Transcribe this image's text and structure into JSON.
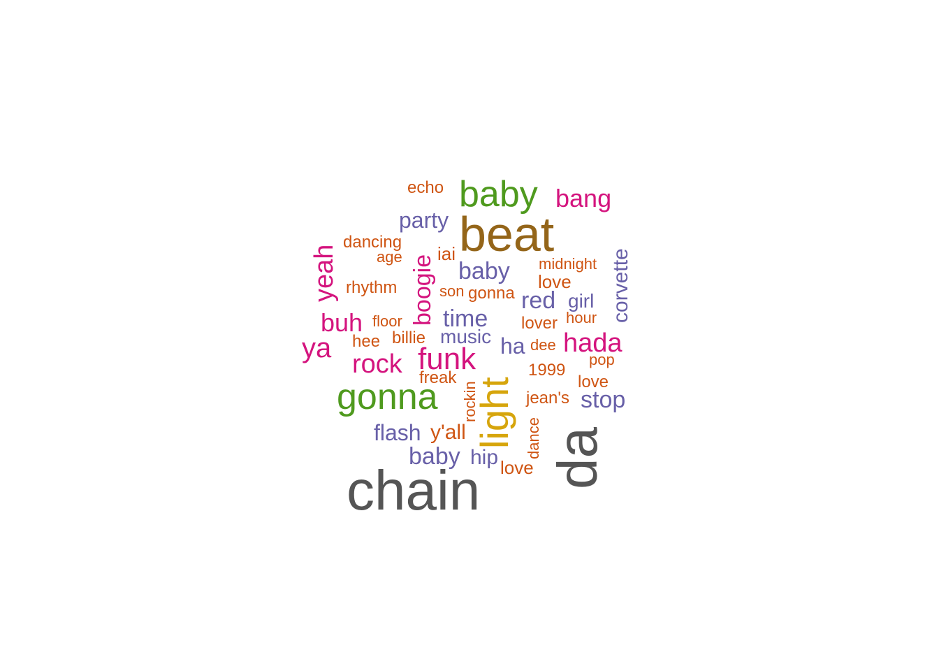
{
  "word_cloud": {
    "words": [
      {
        "text": "chain",
        "color": "#555555"
      },
      {
        "text": "da",
        "color": "#555555"
      },
      {
        "text": "beat",
        "color": "#946519"
      },
      {
        "text": "light",
        "color": "#D6A50C"
      },
      {
        "text": "gonna",
        "color": "#4F9A1E"
      },
      {
        "text": "baby",
        "color": "#4F9A1E"
      },
      {
        "text": "bang",
        "color": "#D4147E"
      },
      {
        "text": "echo",
        "color": "#CF5513"
      },
      {
        "text": "party",
        "color": "#6860A8"
      },
      {
        "text": "dancing",
        "color": "#CF5513"
      },
      {
        "text": "age",
        "color": "#CF5513"
      },
      {
        "text": "yeah",
        "color": "#D4147E"
      },
      {
        "text": "boogie",
        "color": "#D4147E"
      },
      {
        "text": "iai",
        "color": "#CF5513"
      },
      {
        "text": "baby",
        "color": "#6860A8"
      },
      {
        "text": "midnight",
        "color": "#CF5513"
      },
      {
        "text": "corvette",
        "color": "#6860A8"
      },
      {
        "text": "rhythm",
        "color": "#CF5513"
      },
      {
        "text": "son",
        "color": "#CF5513"
      },
      {
        "text": "gonna",
        "color": "#CF5513"
      },
      {
        "text": "love",
        "color": "#CF5513"
      },
      {
        "text": "red",
        "color": "#6860A8"
      },
      {
        "text": "girl",
        "color": "#6860A8"
      },
      {
        "text": "buh",
        "color": "#D4147E"
      },
      {
        "text": "floor",
        "color": "#CF5513"
      },
      {
        "text": "time",
        "color": "#6860A8"
      },
      {
        "text": "lover",
        "color": "#CF5513"
      },
      {
        "text": "hour",
        "color": "#CF5513"
      },
      {
        "text": "ya",
        "color": "#D4147E"
      },
      {
        "text": "hee",
        "color": "#CF5513"
      },
      {
        "text": "billie",
        "color": "#CF5513"
      },
      {
        "text": "music",
        "color": "#6860A8"
      },
      {
        "text": "ha",
        "color": "#6860A8"
      },
      {
        "text": "dee",
        "color": "#CF5513"
      },
      {
        "text": "hada",
        "color": "#D4147E"
      },
      {
        "text": "rock",
        "color": "#D4147E"
      },
      {
        "text": "funk",
        "color": "#D4147E"
      },
      {
        "text": "pop",
        "color": "#CF5513"
      },
      {
        "text": "1999",
        "color": "#CF5513"
      },
      {
        "text": "freak",
        "color": "#CF5513"
      },
      {
        "text": "rockin",
        "color": "#CF5513"
      },
      {
        "text": "love",
        "color": "#CF5513"
      },
      {
        "text": "jean's",
        "color": "#CF5513"
      },
      {
        "text": "stop",
        "color": "#6860A8"
      },
      {
        "text": "flash",
        "color": "#6860A8"
      },
      {
        "text": "y'all",
        "color": "#CF5513"
      },
      {
        "text": "dance",
        "color": "#CF5513"
      },
      {
        "text": "baby",
        "color": "#6860A8"
      },
      {
        "text": "hip",
        "color": "#6860A8"
      },
      {
        "text": "love",
        "color": "#CF5513"
      }
    ]
  }
}
